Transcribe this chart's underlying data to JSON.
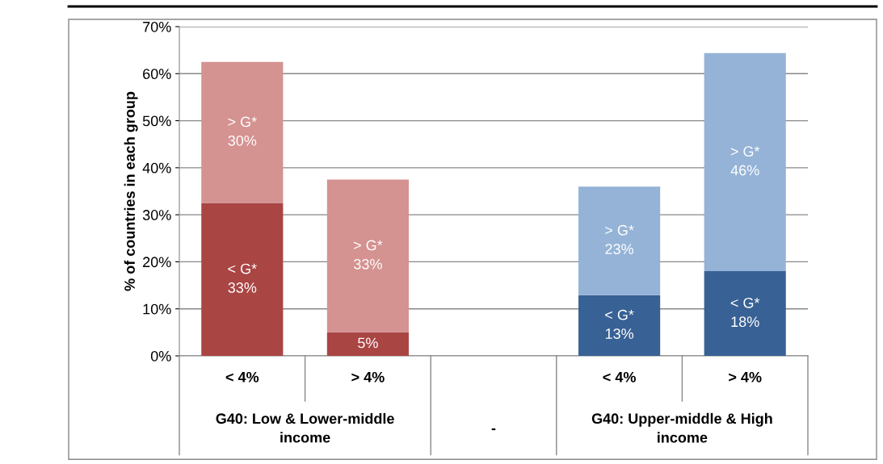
{
  "chart_data": {
    "type": "bar",
    "stacked": true,
    "ylabel": "% of countries in each group",
    "categories": [
      "< 4%",
      "> 4%",
      null,
      "< 4%",
      "> 4%"
    ],
    "series": [
      {
        "values": [
          32.5,
          5,
          null,
          12.9,
          18
        ],
        "colors": [
          "#a94543",
          "#a94543",
          null,
          "#386195",
          "#386195"
        ],
        "value_labels": [
          "< G*\n33%",
          "5%",
          null,
          "< G*\n13%",
          "< G*\n18%"
        ]
      },
      {
        "values": [
          30,
          32.5,
          null,
          23.1,
          46.4
        ],
        "colors": [
          "#d49290",
          "#d49290",
          null,
          "#95b3d7",
          "#95b3d7"
        ],
        "value_labels": [
          "> G*\n30%",
          "> G*\n33%",
          null,
          "> G*\n23%",
          "> G*\n46%"
        ]
      }
    ],
    "ylim": [
      0,
      70
    ],
    "yticks": [
      {
        "value": 0,
        "label": "0%"
      },
      {
        "value": 10,
        "label": "10%"
      },
      {
        "value": 20,
        "label": "20%"
      },
      {
        "value": 30,
        "label": "30%"
      },
      {
        "value": 40,
        "label": "40%"
      },
      {
        "value": 50,
        "label": "50%"
      },
      {
        "value": 60,
        "label": "60%"
      },
      {
        "value": 70,
        "label": "70%"
      }
    ],
    "grid": "y",
    "legend": false,
    "annotations": [
      "G40: Low & Lower-middle\nincome",
      "-",
      "G40: Upper-middle & High\nincome"
    ]
  }
}
